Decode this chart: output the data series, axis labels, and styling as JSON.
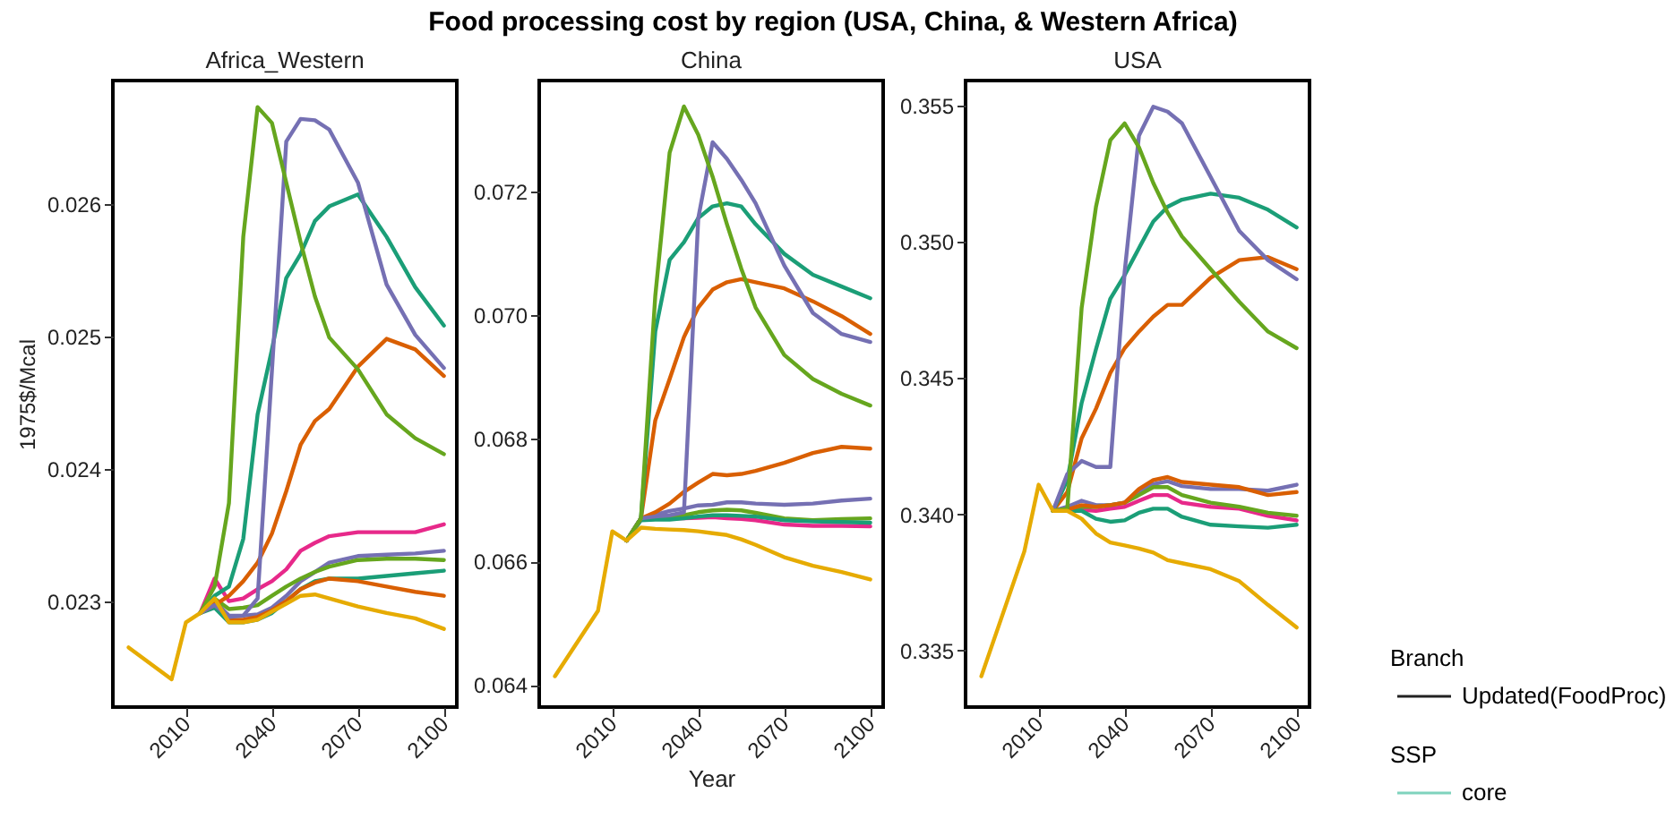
{
  "chart_data": [
    {
      "type": "line",
      "subtitle": "Africa_Western",
      "ylabel": "1975$/Mcal",
      "x": [
        1990,
        2005,
        2010,
        2015,
        2020,
        2025,
        2030,
        2035,
        2040,
        2045,
        2050,
        2055,
        2060,
        2070,
        2080,
        2090,
        2100
      ],
      "xlim": [
        1984.5,
        2104.5
      ],
      "xticks": [
        2010,
        2040,
        2070,
        2100
      ],
      "ylim": [
        0.0222,
        0.02693
      ],
      "yticks": [
        0.023,
        0.024,
        0.025,
        0.026
      ],
      "series": [
        {
          "color": "#e7298a",
          "values": [
            null,
            null,
            null,
            0.02291,
            0.02317,
            0.023,
            0.02302,
            0.02309,
            0.02315,
            0.02324,
            0.02338,
            0.02344,
            0.02349,
            0.02352,
            0.02352,
            0.02352,
            0.02358
          ]
        },
        {
          "color": "#7570b3",
          "values": [
            null,
            null,
            null,
            0.02291,
            0.023,
            0.02289,
            0.02289,
            0.0229,
            0.02295,
            0.02304,
            0.02315,
            0.02322,
            0.02329,
            0.02334,
            0.02335,
            0.02336,
            0.02338
          ]
        },
        {
          "color": "#66a61e",
          "values": [
            null,
            null,
            null,
            0.02291,
            0.02302,
            0.02294,
            0.02295,
            0.02297,
            0.02304,
            0.02311,
            0.02317,
            0.02322,
            0.02326,
            0.02331,
            0.02332,
            0.02332,
            0.02331
          ]
        },
        {
          "color": "#1b9e77",
          "values": [
            null,
            null,
            null,
            0.02291,
            0.02295,
            0.02284,
            0.02284,
            0.02286,
            0.02291,
            0.023,
            0.02309,
            0.02315,
            0.02317,
            0.02317,
            0.02319,
            0.02321,
            0.02323
          ]
        },
        {
          "color": "#d95f02",
          "values": [
            null,
            null,
            null,
            0.02291,
            0.023,
            0.02286,
            0.02286,
            0.02288,
            0.02293,
            0.023,
            0.02309,
            0.02314,
            0.02317,
            0.02315,
            0.02311,
            0.02307,
            0.02304
          ]
        },
        {
          "color": "#d95f02",
          "values": [
            null,
            null,
            null,
            0.02291,
            0.02297,
            0.02304,
            0.02315,
            0.02329,
            0.02351,
            0.02383,
            0.02418,
            0.02436,
            0.02445,
            0.02477,
            0.02498,
            0.0249,
            0.0247
          ]
        },
        {
          "color": "#1b9e77",
          "values": [
            null,
            null,
            null,
            0.02291,
            0.02304,
            0.02311,
            0.02347,
            0.02441,
            0.0249,
            0.02544,
            0.02562,
            0.02587,
            0.02598,
            0.02607,
            0.02575,
            0.02537,
            0.02508
          ]
        },
        {
          "color": "#7570b3",
          "values": [
            null,
            null,
            null,
            0.02291,
            0.02297,
            0.02288,
            0.02289,
            0.02302,
            0.02474,
            0.02647,
            0.02664,
            0.02663,
            0.02656,
            0.02616,
            0.02539,
            0.02501,
            0.02476
          ]
        },
        {
          "color": "#66a61e",
          "values": [
            null,
            null,
            null,
            0.02291,
            0.02311,
            0.02374,
            0.02575,
            0.02673,
            0.02661,
            0.02616,
            0.02571,
            0.0253,
            0.02499,
            0.02475,
            0.02441,
            0.02423,
            0.02411
          ]
        },
        {
          "color": "#e6ab02",
          "values": [
            0.02265,
            0.02241,
            0.02284,
            0.02291,
            0.02302,
            0.02284,
            0.02284,
            0.02286,
            0.02292,
            0.02298,
            0.02304,
            0.02305,
            0.02302,
            0.02296,
            0.02291,
            0.02287,
            0.02279
          ]
        }
      ]
    },
    {
      "type": "line",
      "title": "Food processing cost by region (USA, China, & Western Africa)",
      "subtitle": "China",
      "xlabel": "Year",
      "x": [
        1990,
        2005,
        2010,
        2015,
        2020,
        2025,
        2030,
        2035,
        2040,
        2045,
        2050,
        2055,
        2060,
        2070,
        2080,
        2090,
        2100
      ],
      "xlim": [
        1984.5,
        2104.5
      ],
      "xticks": [
        2010,
        2040,
        2070,
        2100
      ],
      "ylim": [
        0.06364,
        0.0738
      ],
      "yticks": [
        0.064,
        0.066,
        0.068,
        {
          "value": 0.07,
          "label": "0.070"
        },
        0.072
      ],
      "series": [
        {
          "color": "#e7298a",
          "values": [
            null,
            null,
            null,
            null,
            null,
            null,
            0.0667,
            0.0667,
            0.06671,
            0.06672,
            0.0667,
            0.06669,
            0.06667,
            0.0666,
            0.06658,
            0.06658,
            0.06657
          ]
        },
        {
          "color": "#7570b3",
          "values": [
            null,
            null,
            null,
            0.06634,
            0.0667,
            0.06676,
            0.06682,
            0.06686,
            0.06691,
            0.06692,
            0.06696,
            0.06696,
            0.06694,
            0.06692,
            0.06694,
            0.06699,
            0.06702
          ]
        },
        {
          "color": "#66a61e",
          "values": [
            null,
            null,
            null,
            0.06634,
            0.0667,
            0.0667,
            0.06673,
            0.06675,
            0.0668,
            0.06683,
            0.06684,
            0.06683,
            0.06679,
            0.0667,
            0.06667,
            0.06669,
            0.0667
          ]
        },
        {
          "color": "#1b9e77",
          "values": [
            null,
            null,
            null,
            0.06634,
            0.06667,
            0.06668,
            0.06668,
            0.0667,
            0.06673,
            0.06675,
            0.06675,
            0.06674,
            0.06673,
            0.06667,
            0.06665,
            0.06664,
            0.06663
          ]
        },
        {
          "color": "#d95f02",
          "values": [
            null,
            null,
            null,
            0.06634,
            0.0667,
            0.0668,
            0.06694,
            0.06713,
            0.06728,
            0.06742,
            0.0674,
            0.06742,
            0.06747,
            0.0676,
            0.06776,
            0.06786,
            0.06783
          ]
        },
        {
          "color": "#d95f02",
          "values": [
            null,
            null,
            null,
            0.06634,
            0.0667,
            0.06829,
            0.06896,
            0.06964,
            0.07012,
            0.07041,
            0.07053,
            0.07058,
            0.07053,
            0.07043,
            0.07022,
            0.06998,
            0.06969
          ]
        },
        {
          "color": "#1b9e77",
          "values": [
            null,
            null,
            null,
            0.06634,
            0.0667,
            0.06973,
            0.07089,
            0.07118,
            0.07157,
            0.07176,
            0.07181,
            0.07176,
            0.07147,
            0.07099,
            0.07065,
            0.07046,
            0.07027
          ]
        },
        {
          "color": "#7570b3",
          "values": [
            null,
            null,
            null,
            0.06634,
            0.0667,
            0.06673,
            0.06675,
            0.0668,
            0.07157,
            0.0728,
            0.07253,
            0.07219,
            0.07181,
            0.0708,
            0.07003,
            0.06969,
            0.06956
          ]
        },
        {
          "color": "#66a61e",
          "values": [
            null,
            null,
            null,
            0.06634,
            0.0667,
            0.07031,
            0.07263,
            0.07338,
            0.07292,
            0.07224,
            0.07147,
            0.07075,
            0.07012,
            0.06935,
            0.06896,
            0.06872,
            0.06853
          ]
        },
        {
          "color": "#e6ab02",
          "values": [
            0.06414,
            0.0652,
            0.06649,
            0.06634,
            0.06655,
            0.06653,
            0.06652,
            0.06651,
            0.06649,
            0.06646,
            0.06643,
            0.06636,
            0.06627,
            0.06607,
            0.06593,
            0.06583,
            0.06571
          ]
        }
      ]
    },
    {
      "type": "line",
      "subtitle": "USA",
      "annotations": [
        "Branch",
        "Updated(FoodProc)",
        "SSP",
        "core"
      ],
      "x": [
        1990,
        2005,
        2010,
        2015,
        2020,
        2025,
        2030,
        2035,
        2040,
        2045,
        2050,
        2055,
        2060,
        2070,
        2080,
        2090,
        2100
      ],
      "xlim": [
        1984.5,
        2104.5
      ],
      "xticks": [
        2010,
        2040,
        2070,
        2100
      ],
      "ylim": [
        0.33293,
        0.35592
      ],
      "yticks": [
        0.335,
        {
          "value": 0.34,
          "label": "0.340"
        },
        0.345,
        {
          "value": 0.35,
          "label": "0.350"
        },
        0.355
      ],
      "series": [
        {
          "color": "#e7298a",
          "values": [
            null,
            null,
            null,
            0.34013,
            0.34013,
            0.34017,
            0.34013,
            0.34021,
            0.34028,
            0.3405,
            0.34071,
            0.34071,
            0.34043,
            0.34028,
            0.34021,
            0.33995,
            0.33978
          ]
        },
        {
          "color": "#7570b3",
          "values": [
            null,
            null,
            null,
            0.34013,
            0.34028,
            0.3405,
            0.34034,
            0.34034,
            0.34043,
            0.34082,
            0.34111,
            0.34122,
            0.34104,
            0.34093,
            0.34093,
            0.34087,
            0.34109
          ]
        },
        {
          "color": "#66a61e",
          "values": [
            null,
            null,
            null,
            0.34013,
            0.34017,
            0.34028,
            0.34028,
            0.34034,
            0.34043,
            0.34071,
            0.341,
            0.341,
            0.34071,
            0.34043,
            0.34028,
            0.34006,
            0.33995
          ]
        },
        {
          "color": "#1b9e77",
          "values": [
            null,
            null,
            null,
            0.34013,
            0.34013,
            0.34013,
            0.33984,
            0.33973,
            0.33978,
            0.34006,
            0.34021,
            0.34021,
            0.33991,
            0.33962,
            0.33956,
            0.33951,
            0.33962
          ]
        },
        {
          "color": "#d95f02",
          "values": [
            null,
            null,
            null,
            0.34013,
            0.34017,
            0.34034,
            0.34028,
            0.34034,
            0.34043,
            0.34093,
            0.34126,
            0.34137,
            0.34119,
            0.34109,
            0.341,
            0.34071,
            0.34082
          ]
        },
        {
          "color": "#d95f02",
          "values": [
            null,
            null,
            null,
            0.34013,
            0.34082,
            0.34279,
            0.34388,
            0.34519,
            0.3461,
            0.34671,
            0.34726,
            0.34769,
            0.34769,
            0.34868,
            0.34933,
            0.34944,
            0.349
          ]
        },
        {
          "color": "#1b9e77",
          "values": [
            null,
            null,
            null,
            0.34013,
            0.34126,
            0.34409,
            0.34606,
            0.34791,
            0.34878,
            0.34977,
            0.35075,
            0.35129,
            0.35155,
            0.35177,
            0.35162,
            0.35118,
            0.35053
          ]
        },
        {
          "color": "#7570b3",
          "values": [
            null,
            null,
            null,
            0.34013,
            0.34148,
            0.34196,
            0.34174,
            0.34174,
            0.34889,
            0.3539,
            0.35496,
            0.35478,
            0.35435,
            0.35238,
            0.3504,
            0.34933,
            0.34863
          ]
        },
        {
          "color": "#66a61e",
          "values": [
            null,
            null,
            null,
            0.34013,
            0.34021,
            0.34758,
            0.35129,
            0.35373,
            0.35435,
            0.35347,
            0.35216,
            0.35107,
            0.3502,
            0.349,
            0.3478,
            0.34671,
            0.3461
          ]
        },
        {
          "color": "#e6ab02",
          "values": [
            0.33406,
            0.33864,
            0.34109,
            0.34013,
            0.34013,
            0.33984,
            0.3393,
            0.33897,
            0.33886,
            0.33875,
            0.3386,
            0.33832,
            0.33821,
            0.33799,
            0.33755,
            0.33668,
            0.33585
          ]
        }
      ]
    }
  ]
}
